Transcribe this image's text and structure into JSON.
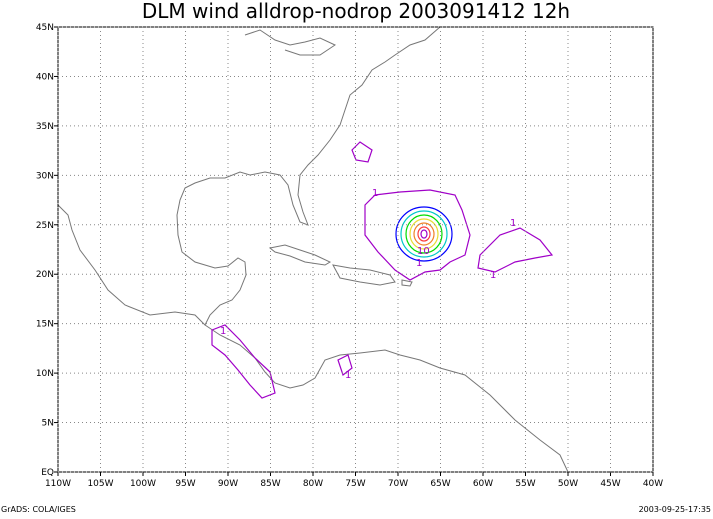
{
  "title": "DLM wind alldrop-nodrop 2003091412 12h",
  "map": {
    "lonlim": [
      -110,
      -40
    ],
    "latlim": [
      0,
      45
    ],
    "xticks": [
      {
        "value": -110,
        "label": "110W"
      },
      {
        "value": -105,
        "label": "105W"
      },
      {
        "value": -100,
        "label": "100W"
      },
      {
        "value": -95,
        "label": "95W"
      },
      {
        "value": -90,
        "label": "90W"
      },
      {
        "value": -85,
        "label": "85W"
      },
      {
        "value": -80,
        "label": "80W"
      },
      {
        "value": -75,
        "label": "75W"
      },
      {
        "value": -70,
        "label": "70W"
      },
      {
        "value": -65,
        "label": "65W"
      },
      {
        "value": -60,
        "label": "60W"
      },
      {
        "value": -55,
        "label": "55W"
      },
      {
        "value": -50,
        "label": "50W"
      },
      {
        "value": -45,
        "label": "45W"
      },
      {
        "value": -40,
        "label": "40W"
      }
    ],
    "yticks": [
      {
        "value": 0,
        "label": "EQ"
      },
      {
        "value": 5,
        "label": "5N"
      },
      {
        "value": 10,
        "label": "10N"
      },
      {
        "value": 15,
        "label": "15N"
      },
      {
        "value": 20,
        "label": "20N"
      },
      {
        "value": 25,
        "label": "25N"
      },
      {
        "value": 30,
        "label": "30N"
      },
      {
        "value": 35,
        "label": "35N"
      },
      {
        "value": 40,
        "label": "40N"
      },
      {
        "value": 45,
        "label": "45N"
      }
    ],
    "grid": true
  },
  "contour_labels": [
    "1",
    "1",
    "1",
    "10",
    "1",
    "1",
    "1"
  ],
  "footer": {
    "left": "GrADS: COLA/IGES",
    "right": "2003-09-25-17:35"
  }
}
